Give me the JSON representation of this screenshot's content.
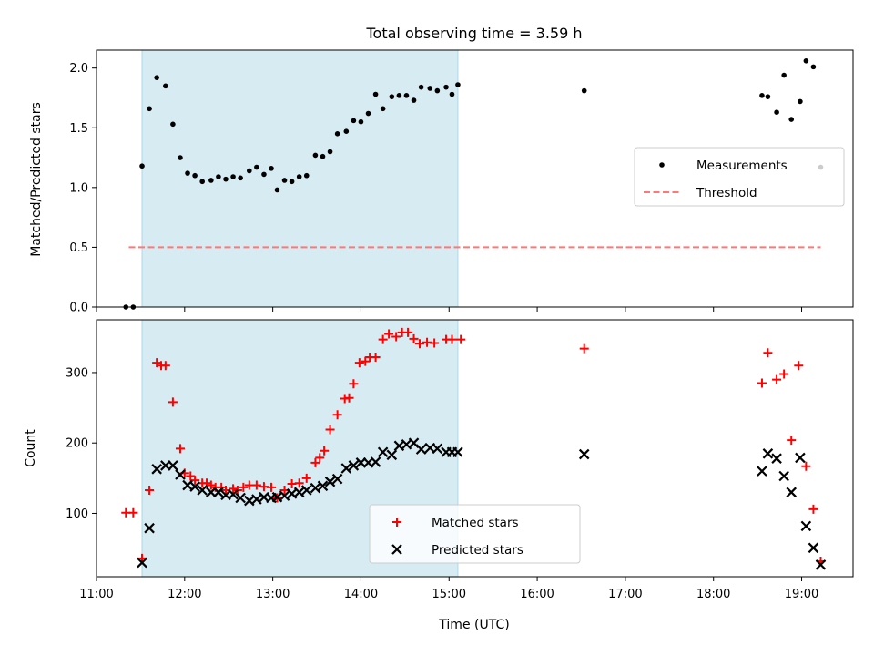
{
  "chart_data": [
    {
      "type": "scatter",
      "title": "Total observing time = 3.59 h",
      "ylabel": "Matched/Predicted stars",
      "xlabel": "",
      "xlim": [
        "11:00",
        "19:35"
      ],
      "ylim": [
        0,
        2.15
      ],
      "yticks": [
        "0.0",
        "0.5",
        "1.0",
        "1.5",
        "2.0"
      ],
      "shaded_interval": [
        "11:31",
        "15:06"
      ],
      "shade_color": "#add8e6",
      "legend": {
        "placement": "center-right",
        "entries": [
          "Measurements",
          "Threshold"
        ]
      },
      "series": [
        {
          "name": "Measurements",
          "marker": "dot",
          "color": "#000000",
          "x": [
            "11:20",
            "11:25",
            "11:31",
            "11:36",
            "11:41",
            "11:47",
            "11:52",
            "11:57",
            "12:02",
            "12:07",
            "12:12",
            "12:18",
            "12:23",
            "12:28",
            "12:33",
            "12:38",
            "12:44",
            "12:49",
            "12:54",
            "12:59",
            "13:03",
            "13:08",
            "13:13",
            "13:18",
            "13:23",
            "13:29",
            "13:34",
            "13:39",
            "13:44",
            "13:50",
            "13:55",
            "14:00",
            "14:05",
            "14:10",
            "14:15",
            "14:21",
            "14:26",
            "14:31",
            "14:36",
            "14:41",
            "14:47",
            "14:52",
            "14:58",
            "15:02",
            "15:06",
            "16:32",
            "18:33",
            "18:37",
            "18:43",
            "18:48",
            "18:53",
            "18:59",
            "19:03",
            "19:08",
            "19:13"
          ],
          "y": [
            0.0,
            0.0,
            1.18,
            1.66,
            1.92,
            1.85,
            1.53,
            1.25,
            1.12,
            1.1,
            1.05,
            1.06,
            1.09,
            1.07,
            1.09,
            1.08,
            1.14,
            1.17,
            1.11,
            1.16,
            0.98,
            1.06,
            1.05,
            1.09,
            1.1,
            1.27,
            1.26,
            1.3,
            1.45,
            1.47,
            1.56,
            1.55,
            1.62,
            1.78,
            1.66,
            1.76,
            1.77,
            1.77,
            1.73,
            1.84,
            1.83,
            1.81,
            1.84,
            1.78,
            1.86,
            1.81,
            1.77,
            1.76,
            1.63,
            1.94,
            1.57,
            1.72,
            2.06,
            2.01,
            1.17
          ]
        },
        {
          "name": "Threshold",
          "style": "dashed",
          "color": "#ff7777",
          "x": [
            "11:22",
            "19:13"
          ],
          "y": [
            0.5,
            0.5
          ]
        }
      ]
    },
    {
      "type": "scatter",
      "title": "",
      "ylabel": "Count",
      "xlabel": "Time (UTC)",
      "xlim": [
        "11:00",
        "19:35"
      ],
      "ylim": [
        10,
        375
      ],
      "yticks": [
        "100",
        "200",
        "300"
      ],
      "xticks": [
        "11:00",
        "12:00",
        "13:00",
        "14:00",
        "15:00",
        "16:00",
        "17:00",
        "18:00",
        "19:00"
      ],
      "shaded_interval": [
        "11:31",
        "15:06"
      ],
      "shade_color": "#add8e6",
      "legend": {
        "placement": "bottom-center",
        "entries": [
          "Matched stars",
          "Predicted stars"
        ]
      },
      "series": [
        {
          "name": "Matched stars",
          "marker": "plus",
          "color": "#ff0000",
          "x": [
            "11:20",
            "11:25",
            "11:31",
            "11:36",
            "11:41",
            "11:44",
            "11:47",
            "11:52",
            "11:57",
            "12:00",
            "12:04",
            "12:07",
            "12:12",
            "12:15",
            "12:18",
            "12:21",
            "12:25",
            "12:28",
            "12:33",
            "12:36",
            "12:40",
            "12:44",
            "12:49",
            "12:54",
            "12:59",
            "13:03",
            "13:08",
            "13:13",
            "13:18",
            "13:23",
            "13:29",
            "13:32",
            "13:35",
            "13:39",
            "13:44",
            "13:49",
            "13:52",
            "13:55",
            "13:59",
            "14:03",
            "14:06",
            "14:10",
            "14:15",
            "14:19",
            "14:24",
            "14:28",
            "14:32",
            "14:36",
            "14:40",
            "14:45",
            "14:50",
            "14:58",
            "15:02",
            "15:08",
            "16:32",
            "18:33",
            "18:37",
            "18:43",
            "18:48",
            "18:53",
            "18:58",
            "19:03",
            "19:08",
            "19:13"
          ],
          "y": [
            101,
            101,
            36,
            133,
            314,
            310,
            310,
            258,
            192,
            157,
            153,
            147,
            143,
            143,
            140,
            137,
            137,
            133,
            135,
            133,
            137,
            140,
            140,
            138,
            137,
            122,
            133,
            142,
            143,
            150,
            172,
            179,
            189,
            219,
            240,
            263,
            264,
            284,
            314,
            316,
            322,
            322,
            347,
            355,
            351,
            357,
            357,
            348,
            341,
            343,
            342,
            347,
            347,
            347,
            334,
            285,
            328,
            290,
            298,
            204,
            310,
            167,
            106,
            32
          ]
        },
        {
          "name": "Predicted stars",
          "marker": "x",
          "color": "#000000",
          "x": [
            "11:31",
            "11:36",
            "11:41",
            "11:47",
            "11:52",
            "11:57",
            "12:02",
            "12:07",
            "12:12",
            "12:18",
            "12:23",
            "12:28",
            "12:33",
            "12:38",
            "12:44",
            "12:49",
            "12:54",
            "12:59",
            "13:03",
            "13:08",
            "13:13",
            "13:18",
            "13:23",
            "13:29",
            "13:34",
            "13:39",
            "13:44",
            "13:50",
            "13:55",
            "14:00",
            "14:05",
            "14:10",
            "14:15",
            "14:21",
            "14:26",
            "14:31",
            "14:36",
            "14:41",
            "14:47",
            "14:52",
            "14:58",
            "15:02",
            "15:06",
            "16:32",
            "18:33",
            "18:37",
            "18:43",
            "18:48",
            "18:53",
            "18:59",
            "19:03",
            "19:08",
            "19:13"
          ],
          "y": [
            30,
            79,
            163,
            168,
            168,
            155,
            140,
            138,
            133,
            130,
            130,
            126,
            127,
            122,
            118,
            120,
            123,
            122,
            123,
            125,
            128,
            130,
            133,
            136,
            139,
            145,
            149,
            164,
            168,
            172,
            172,
            173,
            187,
            183,
            196,
            198,
            200,
            191,
            193,
            192,
            187,
            187,
            187,
            184,
            160,
            185,
            178,
            153,
            130,
            179,
            82,
            51,
            27
          ]
        }
      ]
    }
  ]
}
